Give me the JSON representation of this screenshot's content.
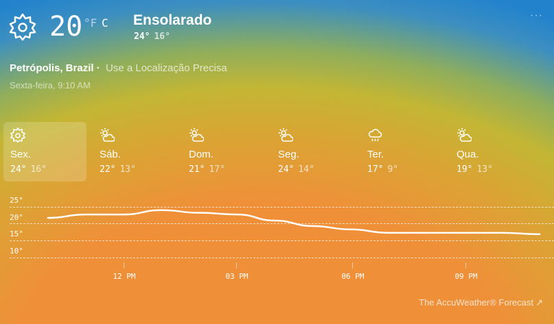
{
  "current": {
    "temperature": "20",
    "unit_f": "°F",
    "unit_c": "C",
    "condition": "Ensolarado",
    "high": "24°",
    "low": "16°",
    "icon": "sun-icon"
  },
  "more_label": "···",
  "location": {
    "name": "Petrópolis, Brazil ·",
    "precise_link": "Use a Localização Precisa",
    "datetime": "Sexta-feira, 9:10 AM"
  },
  "days": [
    {
      "name": "Sex.",
      "high": "24°",
      "low": "16°",
      "icon": "sun"
    },
    {
      "name": "Sáb.",
      "high": "22°",
      "low": "13°",
      "icon": "partly-sunny"
    },
    {
      "name": "Dom.",
      "high": "21°",
      "low": "17°",
      "icon": "partly-sunny"
    },
    {
      "name": "Seg.",
      "high": "24°",
      "low": "14°",
      "icon": "partly-sunny"
    },
    {
      "name": "Ter.",
      "high": "17°",
      "low": "9°",
      "icon": "rain"
    },
    {
      "name": "Qua.",
      "high": "19°",
      "low": "13°",
      "icon": "partly-sunny"
    }
  ],
  "chart_data": {
    "type": "line",
    "title": "",
    "xlabel": "",
    "ylabel": "",
    "y_ticks": [
      "25°",
      "20°",
      "15°",
      "10°"
    ],
    "ylim": [
      10,
      25
    ],
    "x_ticks": [
      "12 PM",
      "03 PM",
      "06 PM",
      "09 PM"
    ],
    "x_hours": [
      10,
      11,
      12,
      13,
      14,
      15,
      16,
      17,
      18,
      19,
      20,
      21,
      22,
      23
    ],
    "values": [
      21.6,
      22.6,
      22.6,
      23.9,
      23.1,
      22.6,
      20.8,
      19.2,
      18.2,
      17.2,
      17.2,
      17.2,
      17.2,
      16.8
    ]
  },
  "footer": {
    "label": "The AccuWeather® Forecast",
    "icon": "external-link-icon",
    "arrow": "↗"
  }
}
